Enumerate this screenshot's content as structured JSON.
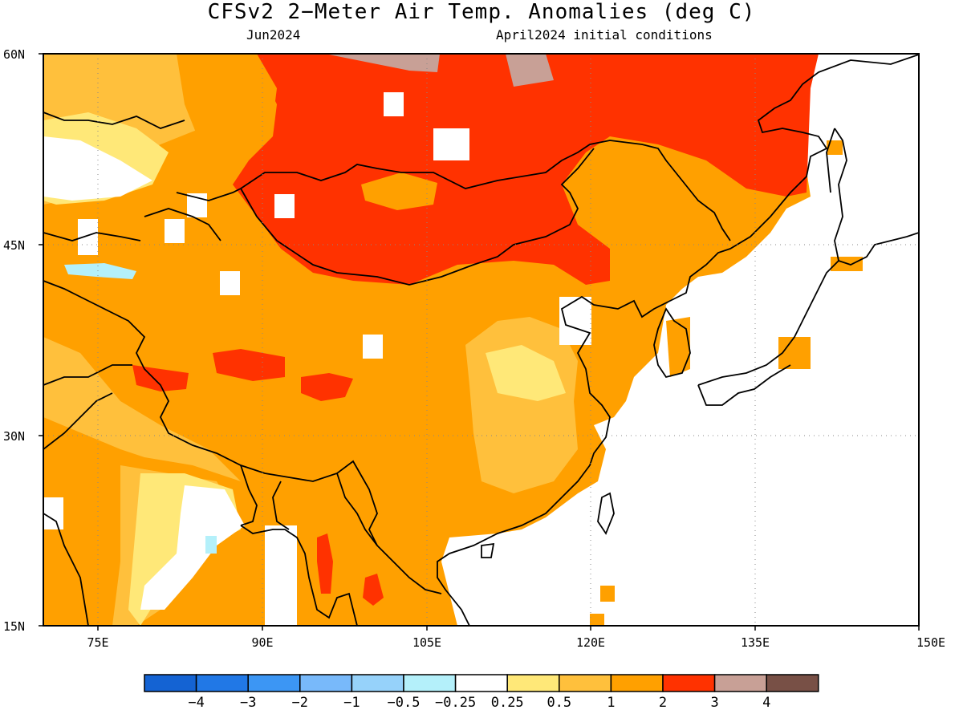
{
  "title": "CFSv2 2−Meter Air Temp. Anomalies (deg C)",
  "subtitle_left": "Jun2024",
  "subtitle_right": "April2024 initial conditions",
  "map": {
    "lat_range": [
      15,
      60
    ],
    "lon_range": [
      70,
      150
    ],
    "lat_ticks": [
      "60N",
      "45N",
      "30N",
      "15N"
    ],
    "lon_ticks": [
      "75E",
      "90E",
      "105E",
      "120E",
      "135E",
      "150E"
    ],
    "grid": "dotted"
  },
  "colorbar": {
    "colors": [
      "#1463d3",
      "#2178e6",
      "#3c96f4",
      "#78b9fa",
      "#96d2fa",
      "#b4f0fa",
      "#ffffff",
      "#ffe878",
      "#ffc03c",
      "#ffa000",
      "#ff3200",
      "#c8a096",
      "#785046"
    ],
    "labels": [
      "−4",
      "−3",
      "−2",
      "−1",
      "−0.5",
      "−0.25",
      "0.25",
      "0.5",
      "1",
      "2",
      "3",
      "4"
    ]
  },
  "anomaly_colors": {
    "orange_1_2": "#ffa000",
    "light_orange_0_5_1": "#ffc03c",
    "yellow_0_25_0_5": "#ffe878",
    "red_2_3": "#ff3200",
    "brown_3_4": "#c8a096",
    "light_blue": "#b4f0fa"
  }
}
